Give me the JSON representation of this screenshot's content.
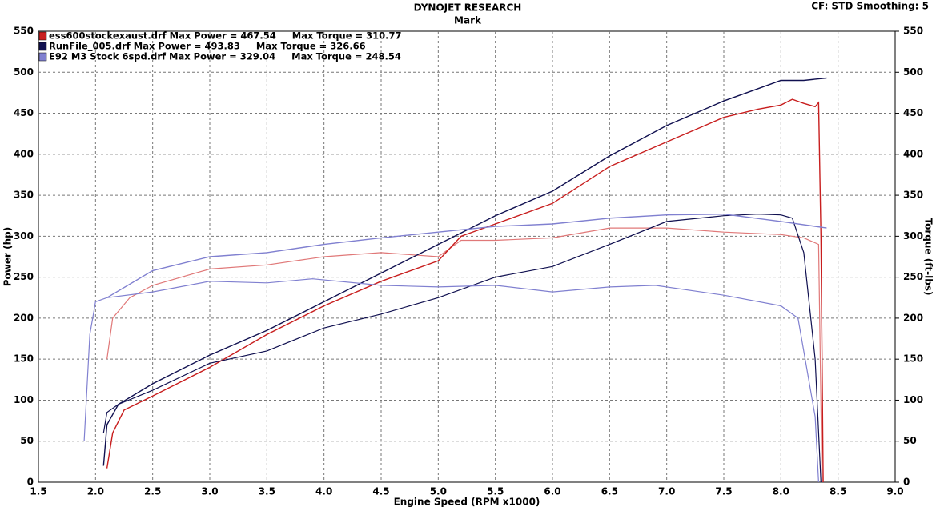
{
  "chart_data": {
    "type": "line",
    "title": "DYNOJET RESEARCH",
    "subtitle": "Mark",
    "settings_text": "CF: STD  Smoothing: 5",
    "x_label": "Engine Speed (RPM x1000)",
    "y_label": "Power (hp)",
    "y2_label": "Torque (ft-lbs)",
    "xlim": [
      1.5,
      9.0
    ],
    "xticks": [
      1.5,
      {
        "value": 2,
        "label": "2.0"
      },
      2.5,
      {
        "value": 3,
        "label": "3.0"
      },
      3.5,
      {
        "value": 4,
        "label": "4.0"
      },
      4.5,
      {
        "value": 5,
        "label": "5.0"
      },
      5.5,
      {
        "value": 6,
        "label": "6.0"
      },
      6.5,
      {
        "value": 7,
        "label": "7.0"
      },
      7.5,
      {
        "value": 8,
        "label": "8.0"
      },
      8.5,
      {
        "value": 9,
        "label": "9.0"
      }
    ],
    "ylim": [
      0,
      550
    ],
    "yticks": [
      0,
      50,
      100,
      150,
      200,
      250,
      300,
      350,
      400,
      450,
      500,
      550
    ],
    "y2lim": [
      0,
      550
    ],
    "y2ticks": [
      0,
      50,
      100,
      150,
      200,
      250,
      300,
      350,
      400,
      450,
      500,
      550
    ],
    "grid": true,
    "files": [
      {
        "name": "ess600stockexaust.drf Max Power = 467.54     Max Torque = 310.77",
        "color": "#c81e1e",
        "torque_color": "#e07878",
        "power": {
          "x": [
            2.1,
            2.15,
            2.25,
            2.5,
            3.0,
            3.5,
            4.0,
            4.5,
            5.0,
            5.2,
            5.5,
            6.0,
            6.5,
            7.0,
            7.5,
            7.8,
            8.0,
            8.1,
            8.2,
            8.3,
            8.33,
            8.35,
            8.37
          ],
          "values": [
            17,
            60,
            88,
            105,
            140,
            180,
            215,
            245,
            270,
            300,
            315,
            340,
            385,
            415,
            445,
            455,
            460,
            467,
            462,
            458,
            463,
            300,
            0
          ]
        },
        "torque": {
          "x": [
            2.1,
            2.15,
            2.3,
            2.5,
            3.0,
            3.5,
            4.0,
            4.5,
            5.0,
            5.2,
            5.5,
            6.0,
            6.5,
            7.0,
            7.5,
            8.0,
            8.2,
            8.33,
            8.36
          ],
          "values": [
            150,
            200,
            225,
            240,
            260,
            265,
            275,
            280,
            275,
            295,
            295,
            298,
            310,
            310,
            305,
            302,
            298,
            290,
            0
          ]
        }
      },
      {
        "name": "RunFile_005.drf Max Power = 493.83     Max Torque = 326.66",
        "color": "#101050",
        "torque_color": "#101050",
        "power": {
          "x": [
            2.07,
            2.1,
            2.2,
            2.5,
            3.0,
            3.5,
            4.0,
            4.5,
            5.0,
            5.5,
            6.0,
            6.5,
            7.0,
            7.5,
            7.8,
            8.0,
            8.2,
            8.4
          ],
          "values": [
            20,
            70,
            95,
            120,
            155,
            185,
            220,
            255,
            290,
            325,
            355,
            398,
            435,
            465,
            480,
            490,
            490,
            493
          ]
        },
        "torque": {
          "x": [
            2.07,
            2.1,
            2.2,
            2.5,
            3.0,
            3.5,
            4.0,
            4.5,
            5.0,
            5.5,
            6.0,
            6.5,
            7.0,
            7.5,
            7.8,
            8.0,
            8.1,
            8.2,
            8.3,
            8.35
          ],
          "values": [
            60,
            85,
            95,
            112,
            145,
            160,
            188,
            205,
            225,
            250,
            263,
            290,
            318,
            325,
            327,
            326,
            322,
            280,
            150,
            0
          ]
        }
      },
      {
        "name": "E92 M3 Stock 6spd.drf Max Power = 329.04     Max Torque = 248.54",
        "color": "#8080d0",
        "torque_color": "#8080d0",
        "power": {
          "x": [
            2.1,
            2.5,
            3.0,
            3.5,
            4.0,
            4.5,
            5.0,
            5.5,
            6.0,
            6.5,
            7.0,
            7.5,
            8.0,
            8.4
          ],
          "values": [
            225,
            258,
            275,
            280,
            290,
            298,
            305,
            312,
            315,
            322,
            326,
            327,
            318,
            310
          ]
        },
        "torque": {
          "x": [
            1.9,
            1.95,
            2.0,
            2.1,
            2.5,
            3.0,
            3.5,
            3.9,
            4.5,
            5.0,
            5.5,
            6.0,
            6.5,
            6.9,
            7.5,
            8.0,
            8.15,
            8.3,
            8.33
          ],
          "values": [
            50,
            180,
            220,
            225,
            232,
            245,
            243,
            248,
            240,
            238,
            240,
            232,
            238,
            240,
            228,
            215,
            200,
            80,
            0
          ]
        }
      }
    ]
  }
}
